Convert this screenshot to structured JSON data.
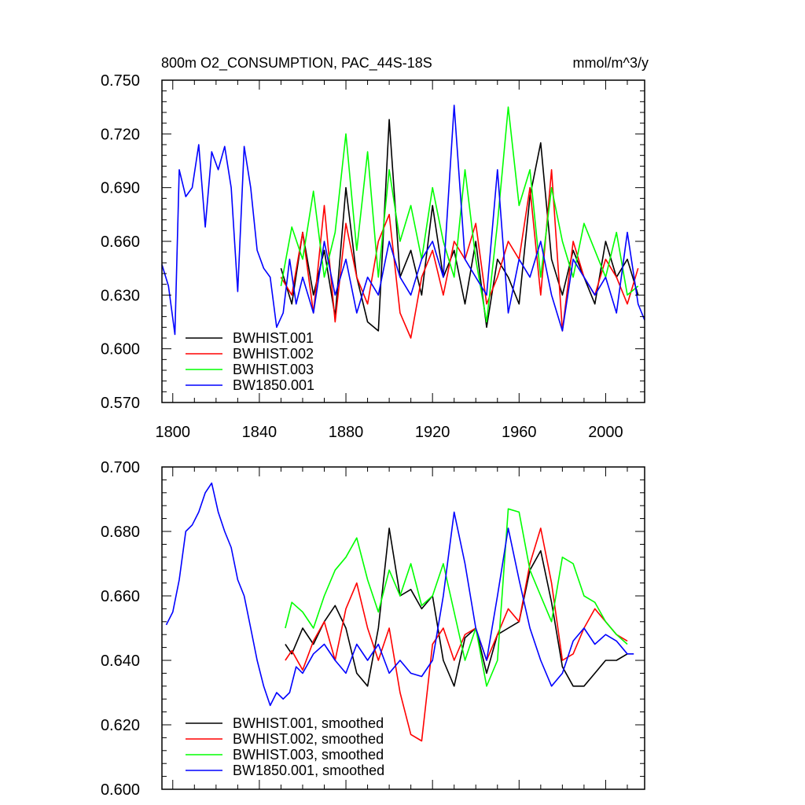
{
  "chart_data": [
    {
      "type": "line",
      "title_left": "800m O2_CONSUMPTION, PAC_44S-18S",
      "title_right": "mmol/m^3/y",
      "xlim": [
        1795,
        2018
      ],
      "ylim": [
        0.57,
        0.75
      ],
      "xticks": [
        1800,
        1840,
        1880,
        1920,
        1960,
        2000
      ],
      "yticks": [
        "0.570",
        "0.600",
        "0.630",
        "0.660",
        "0.690",
        "0.720",
        "0.750"
      ],
      "grid": false,
      "legend_position": "bottom-left",
      "series": [
        {
          "name": "BWHIST.001",
          "color": "#000000",
          "x": [
            1850,
            1855,
            1860,
            1865,
            1870,
            1875,
            1880,
            1885,
            1890,
            1895,
            1900,
            1905,
            1910,
            1915,
            1920,
            1925,
            1930,
            1935,
            1940,
            1945,
            1950,
            1955,
            1960,
            1965,
            1970,
            1975,
            1980,
            1985,
            1990,
            1995,
            2000,
            2005,
            2010,
            2015
          ],
          "y": [
            0.645,
            0.625,
            0.665,
            0.63,
            0.655,
            0.618,
            0.69,
            0.64,
            0.615,
            0.61,
            0.728,
            0.64,
            0.655,
            0.63,
            0.68,
            0.64,
            0.655,
            0.625,
            0.66,
            0.612,
            0.65,
            0.64,
            0.625,
            0.685,
            0.715,
            0.65,
            0.63,
            0.655,
            0.64,
            0.625,
            0.66,
            0.64,
            0.65,
            0.63
          ]
        },
        {
          "name": "BWHIST.002",
          "color": "#ff0000",
          "x": [
            1850,
            1855,
            1860,
            1865,
            1870,
            1875,
            1880,
            1885,
            1890,
            1895,
            1900,
            1905,
            1910,
            1915,
            1920,
            1925,
            1930,
            1935,
            1940,
            1945,
            1950,
            1955,
            1960,
            1965,
            1970,
            1975,
            1980,
            1985,
            1990,
            1995,
            2000,
            2005,
            2010,
            2015
          ],
          "y": [
            0.64,
            0.63,
            0.665,
            0.62,
            0.68,
            0.615,
            0.67,
            0.64,
            0.625,
            0.66,
            0.675,
            0.62,
            0.606,
            0.64,
            0.655,
            0.63,
            0.66,
            0.65,
            0.67,
            0.625,
            0.64,
            0.66,
            0.65,
            0.69,
            0.63,
            0.7,
            0.61,
            0.66,
            0.64,
            0.63,
            0.65,
            0.64,
            0.625,
            0.645
          ]
        },
        {
          "name": "BWHIST.003",
          "color": "#00ff00",
          "x": [
            1850,
            1855,
            1860,
            1865,
            1870,
            1875,
            1880,
            1885,
            1890,
            1895,
            1900,
            1905,
            1910,
            1915,
            1920,
            1925,
            1930,
            1935,
            1940,
            1945,
            1950,
            1955,
            1960,
            1965,
            1970,
            1975,
            1980,
            1985,
            1990,
            1995,
            2000,
            2005,
            2010,
            2015
          ],
          "y": [
            0.635,
            0.668,
            0.65,
            0.688,
            0.64,
            0.665,
            0.72,
            0.655,
            0.71,
            0.64,
            0.7,
            0.66,
            0.68,
            0.65,
            0.69,
            0.66,
            0.64,
            0.7,
            0.65,
            0.615,
            0.67,
            0.735,
            0.68,
            0.7,
            0.64,
            0.69,
            0.66,
            0.64,
            0.67,
            0.655,
            0.64,
            0.665,
            0.63,
            0.635
          ]
        },
        {
          "name": "BW1850.001",
          "color": "#0000ff",
          "x": [
            1795,
            1798,
            1801,
            1803,
            1806,
            1809,
            1812,
            1815,
            1818,
            1821,
            1824,
            1827,
            1830,
            1833,
            1836,
            1839,
            1842,
            1845,
            1848,
            1851,
            1854,
            1857,
            1860,
            1865,
            1870,
            1875,
            1880,
            1885,
            1890,
            1895,
            1900,
            1905,
            1910,
            1915,
            1920,
            1925,
            1930,
            1935,
            1940,
            1945,
            1950,
            1955,
            1960,
            1965,
            1970,
            1975,
            1980,
            1985,
            1990,
            1995,
            2000,
            2005,
            2010,
            2015,
            2018
          ],
          "y": [
            0.647,
            0.635,
            0.608,
            0.7,
            0.685,
            0.69,
            0.714,
            0.668,
            0.71,
            0.7,
            0.713,
            0.69,
            0.632,
            0.713,
            0.69,
            0.655,
            0.645,
            0.64,
            0.612,
            0.62,
            0.65,
            0.625,
            0.64,
            0.62,
            0.66,
            0.63,
            0.65,
            0.62,
            0.64,
            0.63,
            0.66,
            0.64,
            0.63,
            0.65,
            0.66,
            0.64,
            0.736,
            0.65,
            0.64,
            0.63,
            0.7,
            0.62,
            0.65,
            0.64,
            0.66,
            0.63,
            0.61,
            0.65,
            0.64,
            0.63,
            0.64,
            0.62,
            0.665,
            0.625,
            0.616
          ]
        }
      ]
    },
    {
      "type": "line",
      "xlim": [
        1795,
        2018
      ],
      "ylim": [
        0.6,
        0.7
      ],
      "xticks": [
        1800,
        1840,
        1880,
        1920,
        1960,
        2000
      ],
      "yticks": [
        "0.600",
        "0.620",
        "0.640",
        "0.660",
        "0.680",
        "0.700"
      ],
      "grid": false,
      "legend_position": "bottom-left",
      "series": [
        {
          "name": "BWHIST.001, smoothed",
          "color": "#000000",
          "x": [
            1852,
            1855,
            1860,
            1865,
            1870,
            1875,
            1880,
            1885,
            1890,
            1895,
            1900,
            1905,
            1910,
            1915,
            1920,
            1925,
            1930,
            1935,
            1940,
            1945,
            1950,
            1955,
            1960,
            1965,
            1970,
            1975,
            1980,
            1985,
            1990,
            1995,
            2000,
            2005,
            2010
          ],
          "y": [
            0.645,
            0.642,
            0.65,
            0.645,
            0.652,
            0.657,
            0.65,
            0.636,
            0.632,
            0.65,
            0.681,
            0.66,
            0.662,
            0.656,
            0.66,
            0.64,
            0.632,
            0.647,
            0.65,
            0.636,
            0.648,
            0.65,
            0.652,
            0.668,
            0.674,
            0.658,
            0.638,
            0.632,
            0.632,
            0.636,
            0.64,
            0.64,
            0.642
          ]
        },
        {
          "name": "BWHIST.002, smoothed",
          "color": "#ff0000",
          "x": [
            1852,
            1855,
            1860,
            1865,
            1870,
            1875,
            1880,
            1885,
            1890,
            1895,
            1900,
            1905,
            1910,
            1915,
            1920,
            1925,
            1930,
            1935,
            1940,
            1945,
            1950,
            1955,
            1960,
            1965,
            1970,
            1975,
            1980,
            1985,
            1990,
            1995,
            2000,
            2005,
            2010
          ],
          "y": [
            0.64,
            0.643,
            0.637,
            0.646,
            0.652,
            0.64,
            0.656,
            0.664,
            0.65,
            0.64,
            0.65,
            0.63,
            0.617,
            0.615,
            0.645,
            0.65,
            0.64,
            0.648,
            0.65,
            0.64,
            0.648,
            0.656,
            0.652,
            0.67,
            0.681,
            0.664,
            0.64,
            0.642,
            0.65,
            0.656,
            0.652,
            0.648,
            0.646
          ]
        },
        {
          "name": "BWHIST.003, smoothed",
          "color": "#00ff00",
          "x": [
            1852,
            1855,
            1860,
            1865,
            1870,
            1875,
            1880,
            1885,
            1890,
            1895,
            1900,
            1905,
            1910,
            1915,
            1920,
            1925,
            1930,
            1935,
            1940,
            1945,
            1950,
            1955,
            1960,
            1965,
            1970,
            1975,
            1980,
            1985,
            1990,
            1995,
            2000,
            2005,
            2010
          ],
          "y": [
            0.65,
            0.658,
            0.655,
            0.65,
            0.66,
            0.668,
            0.672,
            0.678,
            0.665,
            0.655,
            0.668,
            0.66,
            0.67,
            0.657,
            0.66,
            0.67,
            0.655,
            0.64,
            0.65,
            0.632,
            0.64,
            0.687,
            0.686,
            0.668,
            0.66,
            0.652,
            0.672,
            0.67,
            0.66,
            0.658,
            0.652,
            0.648,
            0.645
          ]
        },
        {
          "name": "BW1850.001, smoothed",
          "color": "#0000ff",
          "x": [
            1797,
            1800,
            1803,
            1806,
            1809,
            1812,
            1815,
            1818,
            1821,
            1824,
            1827,
            1830,
            1833,
            1836,
            1839,
            1842,
            1845,
            1848,
            1851,
            1854,
            1857,
            1860,
            1865,
            1870,
            1875,
            1880,
            1885,
            1890,
            1895,
            1900,
            1905,
            1910,
            1915,
            1920,
            1925,
            1930,
            1935,
            1940,
            1945,
            1950,
            1955,
            1960,
            1965,
            1970,
            1975,
            1980,
            1985,
            1990,
            1995,
            2000,
            2005,
            2010,
            2013
          ],
          "y": [
            0.651,
            0.655,
            0.665,
            0.68,
            0.682,
            0.686,
            0.692,
            0.695,
            0.686,
            0.68,
            0.675,
            0.665,
            0.66,
            0.65,
            0.64,
            0.632,
            0.626,
            0.63,
            0.628,
            0.63,
            0.638,
            0.636,
            0.642,
            0.645,
            0.64,
            0.636,
            0.645,
            0.64,
            0.645,
            0.636,
            0.64,
            0.636,
            0.635,
            0.64,
            0.66,
            0.686,
            0.67,
            0.65,
            0.64,
            0.66,
            0.681,
            0.665,
            0.65,
            0.64,
            0.632,
            0.636,
            0.646,
            0.65,
            0.645,
            0.648,
            0.646,
            0.642,
            0.642
          ]
        }
      ]
    }
  ]
}
